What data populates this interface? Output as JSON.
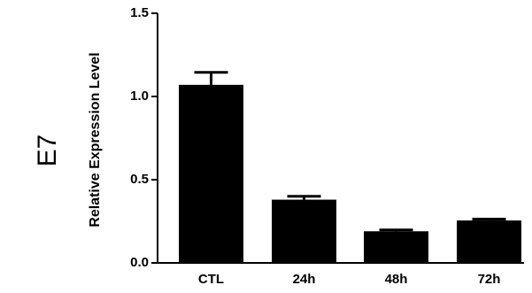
{
  "chart_data": {
    "type": "bar",
    "panel_label": "E7",
    "ylabel": "Relative Expression Level",
    "xlabel": "",
    "categories": [
      "CTL",
      "24h",
      "48h",
      "72h"
    ],
    "values": [
      1.07,
      0.38,
      0.19,
      0.255
    ],
    "errors": [
      0.075,
      0.02,
      0.008,
      0.008
    ],
    "ylim": [
      0,
      1.5
    ],
    "yticks": [
      0.0,
      0.5,
      1.0,
      1.5
    ],
    "ytick_labels": [
      "0.0",
      "0.5",
      "1.0",
      "1.5"
    ],
    "grid": false,
    "legend": "none",
    "bar_color": "#000000"
  }
}
